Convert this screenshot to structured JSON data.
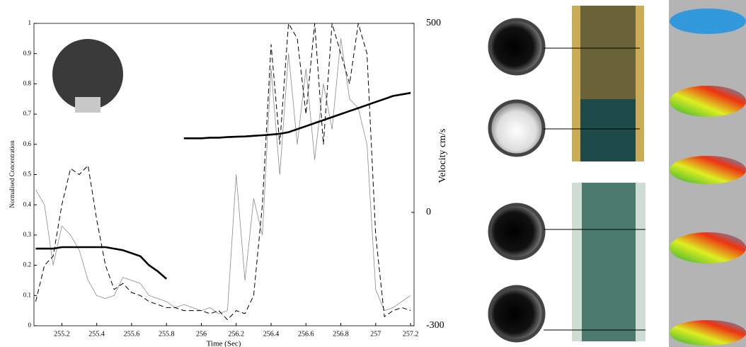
{
  "chart_data": {
    "type": "line",
    "xlabel": "Time (Sec)",
    "ylabel": "Normalised Concentration",
    "y2label": "Velocity cm/s",
    "xlim": [
      255.04,
      257.22
    ],
    "xticks": [
      255.2,
      255.4,
      255.6,
      255.8,
      256,
      256.2,
      256.4,
      256.6,
      256.8,
      257,
      257.2
    ],
    "ylim": [
      0,
      1
    ],
    "yticks": [
      0,
      0.1,
      0.2,
      0.3,
      0.4,
      0.5,
      0.6,
      0.7,
      0.8,
      0.9,
      1
    ],
    "y2lim": [
      -300,
      500
    ],
    "y2ticks": [
      -300,
      0,
      500
    ],
    "x": [
      255.05,
      255.1,
      255.15,
      255.2,
      255.25,
      255.3,
      255.35,
      255.4,
      255.45,
      255.5,
      255.55,
      255.6,
      255.65,
      255.7,
      255.75,
      255.8,
      255.85,
      255.9,
      255.95,
      256,
      256.05,
      256.1,
      256.15,
      256.2,
      256.25,
      256.3,
      256.35,
      256.4,
      256.45,
      256.5,
      256.55,
      256.6,
      256.65,
      256.7,
      256.75,
      256.8,
      256.85,
      256.9,
      256.95,
      257,
      257.05,
      257.1,
      257.15,
      257.2
    ],
    "series": [
      {
        "color": "#000000",
        "style": "thick",
        "values": [
          0.255,
          0.255,
          0.255,
          0.26,
          0.26,
          0.26,
          0.26,
          0.26,
          0.26,
          0.255,
          0.25,
          0.24,
          0.23,
          0.2,
          0.18,
          0.155,
          null,
          0.62,
          0.62,
          0.62,
          0.622,
          0.622,
          0.624,
          0.625,
          0.626,
          0.628,
          0.63,
          0.632,
          0.635,
          0.64,
          0.65,
          0.66,
          0.67,
          0.68,
          0.69,
          0.7,
          0.71,
          0.72,
          0.73,
          0.74,
          0.75,
          0.76,
          0.765,
          0.77
        ]
      },
      {
        "color": "#000000",
        "style": "dashed",
        "values": [
          0.08,
          0.2,
          0.23,
          0.4,
          0.52,
          0.5,
          0.53,
          0.35,
          0.2,
          0.12,
          0.14,
          0.11,
          0.1,
          0.08,
          0.07,
          0.06,
          0.06,
          0.05,
          0.05,
          0.05,
          0.04,
          0.05,
          0.02,
          0.05,
          0.04,
          0.1,
          0.4,
          0.93,
          0.6,
          1,
          0.95,
          0.7,
          1,
          0.6,
          1,
          0.9,
          0.8,
          1,
          0.9,
          0.3,
          0.03,
          0.05,
          0.06,
          0.05
        ]
      },
      {
        "color": "#8a8a8a",
        "style": "thin",
        "values": [
          0.45,
          0.4,
          0.2,
          0.33,
          0.3,
          0.25,
          0.15,
          0.1,
          0.09,
          0.1,
          0.16,
          0.15,
          0.14,
          0.1,
          0.09,
          0.08,
          0.06,
          0.07,
          0.06,
          0.05,
          0.06,
          0.04,
          0.05,
          0.5,
          0.15,
          0.42,
          0.3,
          0.85,
          0.5,
          0.9,
          0.6,
          0.85,
          0.55,
          0.8,
          0.65,
          0.95,
          0.75,
          0.72,
          0.6,
          0.12,
          0.05,
          0.06,
          0.08,
          0.1
        ]
      }
    ]
  }
}
